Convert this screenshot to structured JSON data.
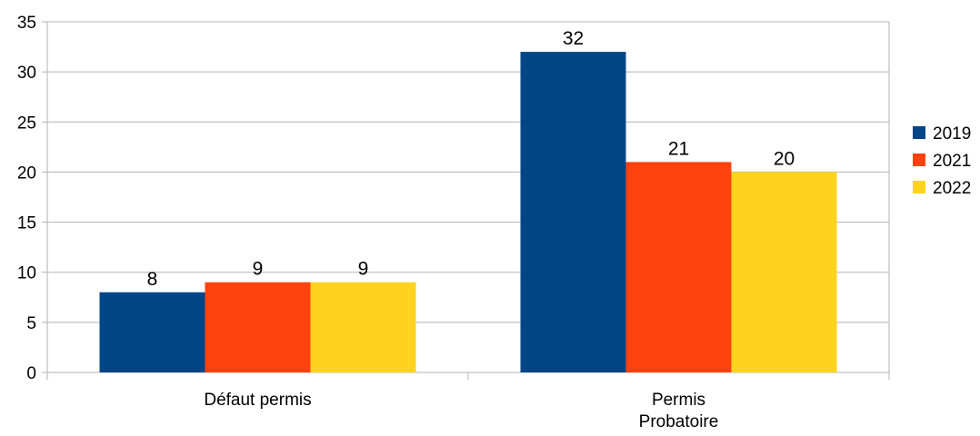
{
  "chart_data": {
    "type": "bar",
    "title": "",
    "xlabel": "",
    "ylabel": "",
    "ylim": [
      0,
      35
    ],
    "yticks": [
      0,
      5,
      10,
      15,
      20,
      25,
      30,
      35
    ],
    "grid": true,
    "legend_position": "right",
    "categories": [
      [
        "Défaut permis"
      ],
      [
        "Permis",
        "Probatoire"
      ]
    ],
    "series": [
      {
        "name": "2019",
        "color": "#004586",
        "values": [
          8,
          32
        ]
      },
      {
        "name": "2021",
        "color": "#ff420e",
        "values": [
          9,
          21
        ]
      },
      {
        "name": "2022",
        "color": "#ffd320",
        "values": [
          9,
          20
        ]
      }
    ]
  }
}
